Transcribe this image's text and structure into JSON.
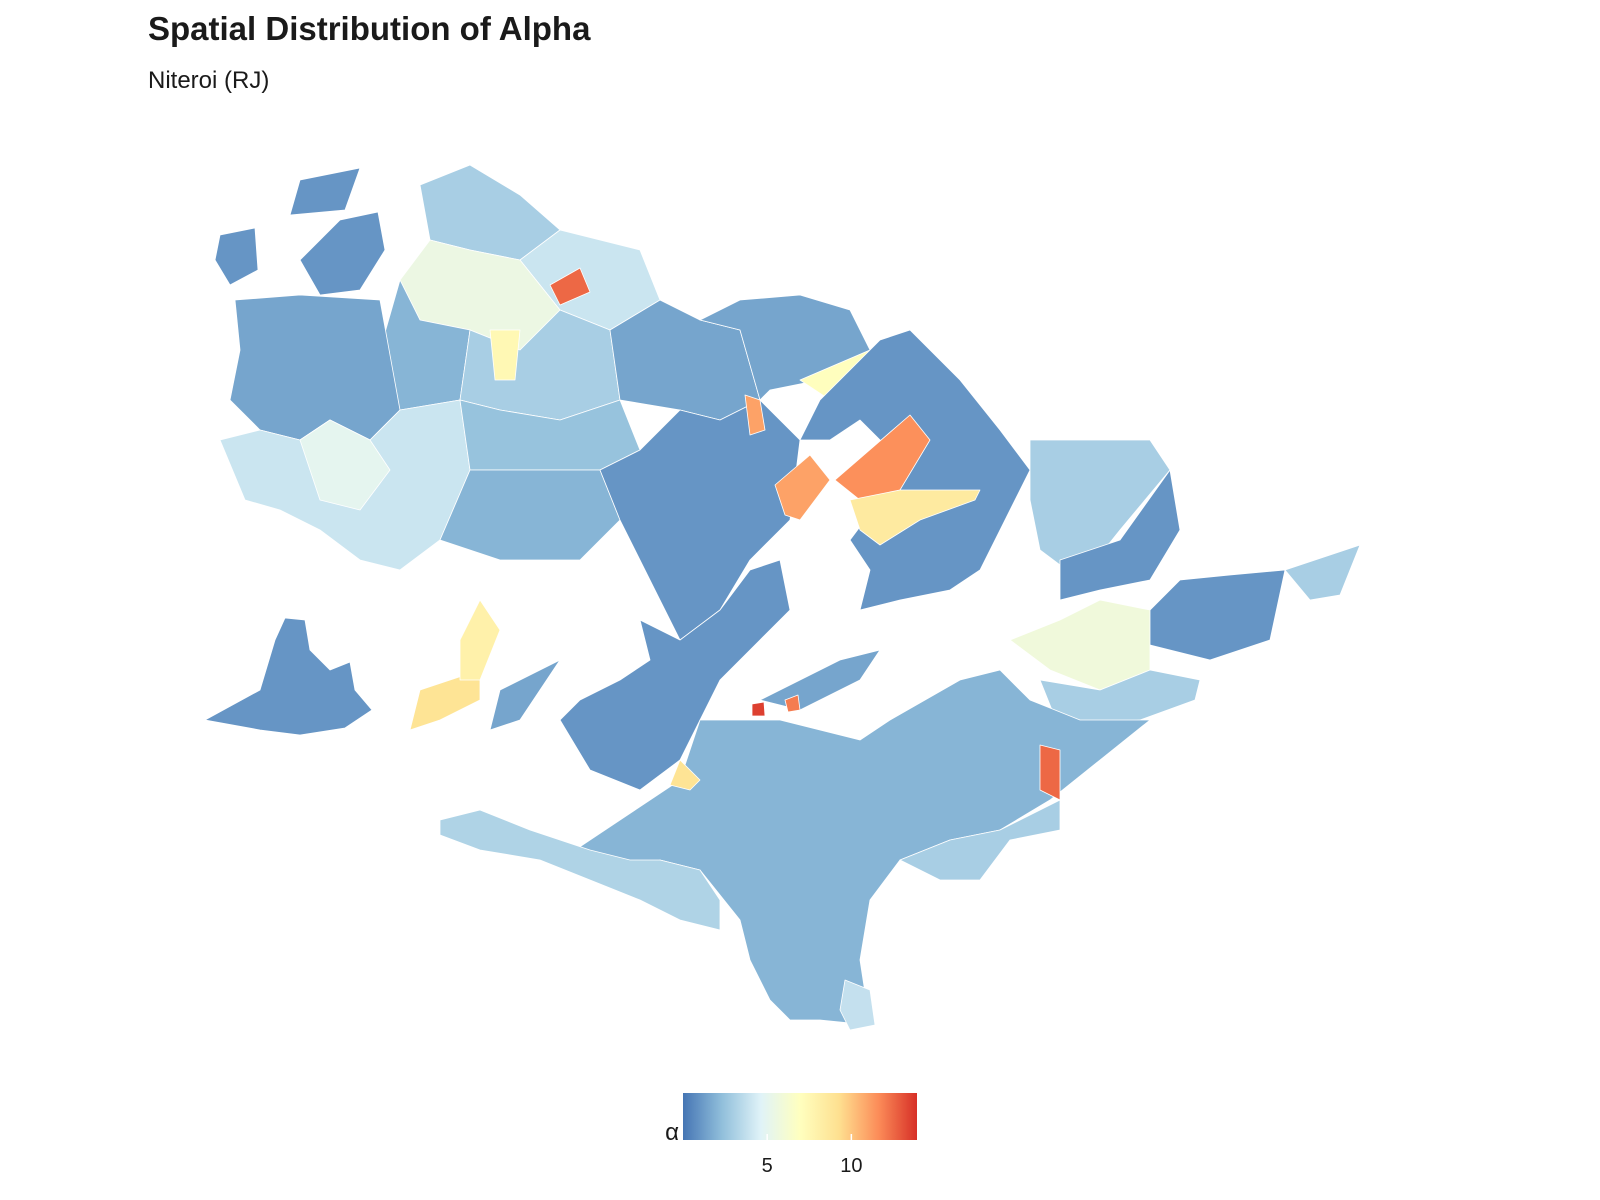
{
  "chart_data": {
    "type": "choropleth",
    "title": "Spatial Distribution of Alpha",
    "subtitle": "Niteroi (RJ)",
    "legend_title": "α",
    "values": [
      3,
      4,
      12.5,
      5.5,
      2,
      3,
      7.5,
      1.5,
      4,
      5,
      2.5,
      1.5,
      2,
      1,
      1.5,
      11,
      7,
      1,
      11.5,
      11,
      8.5,
      3,
      1,
      1,
      3,
      5.8,
      3,
      1,
      1.5,
      9,
      8,
      1.5,
      13.5,
      12,
      2,
      12.5,
      3.2,
      3,
      3.8,
      9,
      1,
      1,
      1,
      1
    ],
    "colorbar_lim": [
      0,
      13.9
    ],
    "colorbar_ticks": [
      5,
      10
    ],
    "palette": [
      "#4575b4",
      "#91bfdb",
      "#e0f3f8",
      "#ffffbf",
      "#fee090",
      "#fc8d59",
      "#d73027"
    ]
  }
}
